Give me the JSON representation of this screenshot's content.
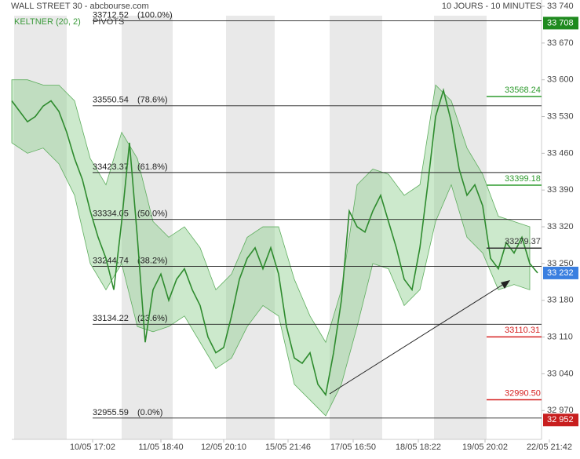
{
  "chart_data": {
    "type": "line",
    "title": "WALL STREET 30 - abcbourse.com",
    "subtitle": "10 JOURS - 10 MINUTES",
    "indicator_label": "KELTNER (20, 2)",
    "pivots_label": "PIVOTS",
    "xlim": [
      0,
      137
    ],
    "ylim": [
      32921,
      33752
    ],
    "xticks": [
      {
        "value": 20.6,
        "label": "10/05 17:02"
      },
      {
        "value": 38,
        "label": "11/05 18:40"
      },
      {
        "value": 54,
        "label": "12/05 20:10"
      },
      {
        "value": 70.4,
        "label": "15/05 21:46"
      },
      {
        "value": 87,
        "label": "17/05 16:50"
      },
      {
        "value": 103.6,
        "label": "18/05 18:22"
      },
      {
        "value": 120.6,
        "label": "19/05 20:02"
      },
      {
        "value": 137,
        "label": "22/05 21:42"
      }
    ],
    "yticks": [
      {
        "value": 33740,
        "label": "33 740"
      },
      {
        "value": 33670,
        "label": "33 670"
      },
      {
        "value": 33600,
        "label": "33 600"
      },
      {
        "value": 33530,
        "label": "33 530"
      },
      {
        "value": 33460,
        "label": "33 460"
      },
      {
        "value": 33390,
        "label": "33 390"
      },
      {
        "value": 33320,
        "label": "33 320"
      },
      {
        "value": 33250,
        "label": "33 250"
      },
      {
        "value": 33180,
        "label": "33 180"
      },
      {
        "value": 33110,
        "label": "33 110"
      },
      {
        "value": 33040,
        "label": "33 040"
      },
      {
        "value": 32970,
        "label": "32 970"
      }
    ],
    "series": [
      {
        "name": "WALL STREET 30",
        "color": "#2e8b2e",
        "x": [
          0,
          2,
          4,
          6,
          8,
          10,
          12,
          14,
          16,
          18,
          20,
          22,
          24,
          26,
          28,
          30,
          32,
          34,
          36,
          38,
          40,
          42,
          44,
          46,
          48,
          50,
          52,
          54,
          56,
          58,
          60,
          62,
          64,
          66,
          68,
          70,
          72,
          74,
          76,
          78,
          80,
          82,
          84,
          86,
          88,
          90,
          92,
          94,
          96,
          98,
          100,
          102,
          104,
          106,
          108,
          110,
          112,
          114,
          116,
          118,
          120,
          122,
          124,
          126,
          128,
          130,
          132,
          134
        ],
        "values": [
          33560,
          33540,
          33520,
          33530,
          33550,
          33560,
          33540,
          33500,
          33450,
          33410,
          33350,
          33300,
          33260,
          33200,
          33330,
          33480,
          33300,
          33100,
          33200,
          33230,
          33180,
          33220,
          33240,
          33200,
          33170,
          33110,
          33080,
          33090,
          33150,
          33220,
          33260,
          33280,
          33240,
          33280,
          33230,
          33130,
          33070,
          33060,
          33080,
          33020,
          33000,
          33080,
          33180,
          33350,
          33320,
          33310,
          33350,
          33380,
          33330,
          33280,
          33220,
          33200,
          33280,
          33400,
          33530,
          33580,
          33520,
          33430,
          33380,
          33400,
          33360,
          33260,
          33240,
          33290,
          33270,
          33300,
          33250,
          33232
        ]
      }
    ],
    "keltner": {
      "color": "#8fcf8f",
      "x": [
        0,
        4,
        8,
        12,
        16,
        20,
        24,
        28,
        32,
        36,
        40,
        44,
        48,
        52,
        56,
        60,
        64,
        68,
        72,
        76,
        80,
        84,
        88,
        92,
        96,
        100,
        104,
        108,
        112,
        116,
        120,
        124,
        128,
        132
      ],
      "upper": [
        33600,
        33600,
        33590,
        33590,
        33560,
        33450,
        33400,
        33500,
        33450,
        33330,
        33300,
        33320,
        33280,
        33200,
        33230,
        33300,
        33320,
        33320,
        33220,
        33150,
        33100,
        33200,
        33400,
        33430,
        33420,
        33380,
        33400,
        33590,
        33560,
        33470,
        33420,
        33340,
        33330,
        33320
      ],
      "lower": [
        33480,
        33460,
        33470,
        33440,
        33380,
        33250,
        33200,
        33250,
        33130,
        33120,
        33130,
        33150,
        33100,
        33050,
        33070,
        33130,
        33170,
        33150,
        33020,
        32990,
        32960,
        33020,
        33130,
        33250,
        33240,
        33170,
        33200,
        33330,
        33400,
        33300,
        33270,
        33200,
        33210,
        33200
      ]
    },
    "fibonacci": [
      {
        "value": 33712.52,
        "pct": "(100.0%)"
      },
      {
        "value": 33550.54,
        "pct": "(78.6%)"
      },
      {
        "value": 33423.37,
        "pct": "(61.8%)"
      },
      {
        "value": 33334.05,
        "pct": "(50.0%)"
      },
      {
        "value": 33244.74,
        "pct": "(38.2%)"
      },
      {
        "value": 33134.22,
        "pct": "(23.6%)"
      },
      {
        "value": 32955.59,
        "pct": "(0.0%)"
      }
    ],
    "pivot_levels": [
      {
        "value": 33568.24,
        "color": "#2e9b2e"
      },
      {
        "value": 33399.18,
        "color": "#2e9b2e"
      },
      {
        "value": 33279.37,
        "color": "#333333"
      },
      {
        "value": 33110.31,
        "color": "#d62020"
      },
      {
        "value": {
          "value": 32990.5,
          "label": "32990.50"
        },
        "color": "#d62020"
      }
    ],
    "badges": [
      {
        "value": {
          "value": 33708,
          "label": "33 708"
        },
        "color": "#1f8a1f"
      },
      {
        "value": {
          "value": 33232,
          "label": "33 232"
        },
        "color": "#3a7fe0"
      },
      {
        "value": {
          "value": 32952,
          "label": "32 952"
        },
        "color": "#c81e1e"
      }
    ]
  }
}
